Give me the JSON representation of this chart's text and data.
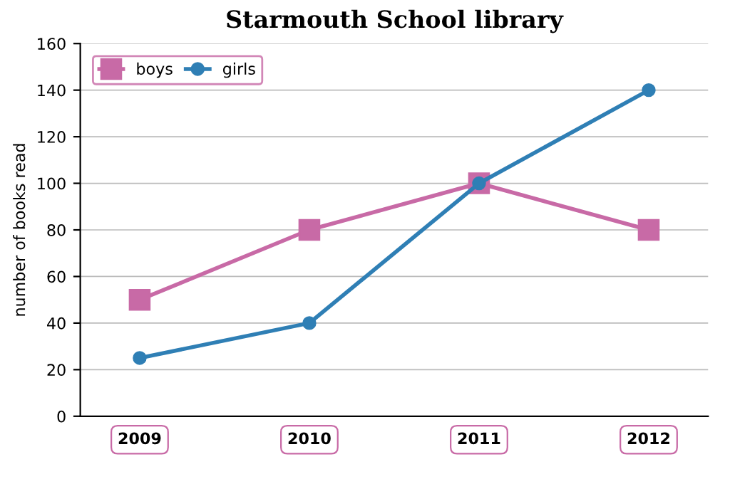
{
  "chart_data": {
    "type": "line",
    "title": "Starmouth School library",
    "ylabel": "number of books read",
    "categories": [
      "2009",
      "2010",
      "2011",
      "2012"
    ],
    "series": [
      {
        "name": "boys",
        "color": "#c86aa6",
        "marker": "square",
        "values": [
          50,
          80,
          100,
          80
        ]
      },
      {
        "name": "girls",
        "color": "#2f7fb5",
        "marker": "circle",
        "values": [
          25,
          40,
          100,
          140
        ]
      }
    ],
    "ylim": [
      0,
      160
    ],
    "yticks": [
      0,
      20,
      40,
      60,
      80,
      100,
      120,
      140,
      160
    ],
    "grid": "y",
    "legend": "top left",
    "line_style": "solid"
  }
}
